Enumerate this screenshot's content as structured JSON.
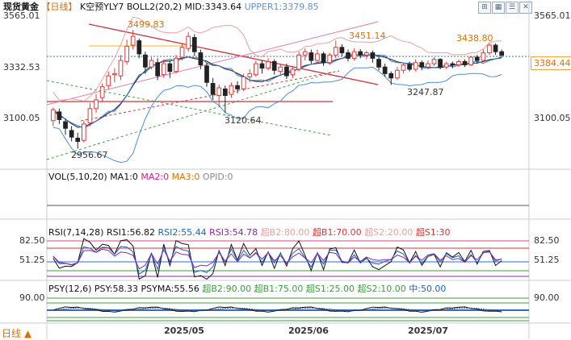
{
  "header": {
    "symbol": "现货黄金",
    "period": "【日线】",
    "k_label": "K空预YLY7",
    "boll_label": "BOLL2(20,2)",
    "mid_label": "MID:3343.64",
    "upper_label": "UPPER1:3379.85"
  },
  "toolbar": {
    "icons": [
      "grid-icon",
      "chart-icon",
      "list-icon",
      "toggle-icon",
      "close-icon"
    ]
  },
  "price_axis": {
    "labels": [
      "3565.01",
      "3332.53",
      "3100.05"
    ],
    "right_labels": [
      "3565.01",
      "3100.05"
    ],
    "current_price": "3384.44"
  },
  "annotations": {
    "high1": "3499.83",
    "high2": "3451.14",
    "high3": "3438.80",
    "low1": "3247.87",
    "low2": "3120.64",
    "low3": "2956.67"
  },
  "volume": {
    "label": "VOL(5,10,20)",
    "ma1": "MA1:0",
    "ma2": "MA2:0",
    "ma3": "MA3:0",
    "opid": "OPID:0"
  },
  "rsi": {
    "label": "RSI(7,14,28)",
    "rsi1": "RSI1:56.82",
    "rsi2": "RSI2:55.44",
    "rsi3": "RSI3:54.78",
    "b2": "超B2:80.00",
    "b1": "超B1:70.00",
    "s2": "超S2:20.00",
    "s1": "超S1:30",
    "axis_left": [
      "82.50",
      "51.25"
    ],
    "axis_right": [
      "82.50",
      "51.25"
    ]
  },
  "psy": {
    "label": "PSY(12,6)",
    "psy": "PSY:58.33",
    "psyma": "PSYMA:55.56",
    "b2": "超B2:90.00",
    "b1": "超B1:75.00",
    "s1": "超S1:25.00",
    "s2": "超S2:10.00",
    "mid": "中:50.00",
    "axis_left": "90.00",
    "axis_right": "90.00"
  },
  "dates": [
    "2025/05",
    "2025/06",
    "2025/07"
  ],
  "bottom": {
    "period": "日线",
    "arrow": "▲"
  },
  "colors": {
    "up": "#e53935",
    "down": "#222222",
    "boll_upper": "#e8a0a0",
    "boll_mid": "#333333",
    "boll_lower": "#4a90d9",
    "resist": "#d0403a",
    "support_green": "#3aa03a",
    "label_orange": "#e07000",
    "rsi1": "#111111",
    "rsi2": "#1565c0",
    "rsi3": "#8e24aa",
    "gold_line": "#f5c542",
    "blue_line": "#3b7dd8"
  },
  "chart_data": {
    "type": "candlestick",
    "title": "现货黄金【日线】",
    "ylim": [
      2900,
      3570
    ],
    "x_ticks": [
      "2025/05",
      "2025/06",
      "2025/07"
    ],
    "candles": [
      [
        3085,
        3135,
        3060,
        3145
      ],
      [
        3125,
        3090,
        3070,
        3140
      ],
      [
        3080,
        3050,
        3020,
        3095
      ],
      [
        3040,
        3010,
        2990,
        3060
      ],
      [
        3005,
        2990,
        2957,
        3030
      ],
      [
        2995,
        3070,
        2985,
        3085
      ],
      [
        3075,
        3140,
        3060,
        3165
      ],
      [
        3140,
        3180,
        3120,
        3205
      ],
      [
        3190,
        3240,
        3170,
        3255
      ],
      [
        3245,
        3290,
        3230,
        3310
      ],
      [
        3295,
        3300,
        3260,
        3325
      ],
      [
        3290,
        3360,
        3270,
        3385
      ],
      [
        3355,
        3425,
        3340,
        3455
      ],
      [
        3430,
        3470,
        3410,
        3500
      ],
      [
        3450,
        3390,
        3370,
        3460
      ],
      [
        3385,
        3330,
        3300,
        3400
      ],
      [
        3330,
        3360,
        3320,
        3375
      ],
      [
        3350,
        3290,
        3270,
        3370
      ],
      [
        3295,
        3345,
        3280,
        3365
      ],
      [
        3345,
        3310,
        3280,
        3360
      ],
      [
        3310,
        3370,
        3300,
        3385
      ],
      [
        3375,
        3420,
        3360,
        3440
      ],
      [
        3415,
        3470,
        3400,
        3490
      ],
      [
        3465,
        3400,
        3380,
        3480
      ],
      [
        3395,
        3340,
        3320,
        3410
      ],
      [
        3335,
        3260,
        3240,
        3350
      ],
      [
        3255,
        3205,
        3180,
        3280
      ],
      [
        3200,
        3235,
        3150,
        3250
      ],
      [
        3230,
        3200,
        3121,
        3245
      ],
      [
        3205,
        3245,
        3190,
        3260
      ],
      [
        3245,
        3230,
        3210,
        3265
      ],
      [
        3230,
        3285,
        3220,
        3300
      ],
      [
        3285,
        3300,
        3260,
        3320
      ],
      [
        3295,
        3345,
        3285,
        3360
      ],
      [
        3345,
        3325,
        3300,
        3360
      ],
      [
        3325,
        3355,
        3315,
        3370
      ],
      [
        3355,
        3315,
        3295,
        3365
      ],
      [
        3310,
        3330,
        3290,
        3345
      ],
      [
        3330,
        3290,
        3275,
        3345
      ],
      [
        3295,
        3320,
        3280,
        3335
      ],
      [
        3320,
        3385,
        3310,
        3400
      ],
      [
        3385,
        3400,
        3360,
        3415
      ],
      [
        3395,
        3360,
        3345,
        3410
      ],
      [
        3360,
        3390,
        3350,
        3410
      ],
      [
        3390,
        3350,
        3335,
        3400
      ],
      [
        3350,
        3385,
        3340,
        3395
      ],
      [
        3385,
        3420,
        3370,
        3451
      ],
      [
        3420,
        3395,
        3380,
        3435
      ],
      [
        3395,
        3370,
        3355,
        3410
      ],
      [
        3370,
        3400,
        3360,
        3415
      ],
      [
        3400,
        3385,
        3370,
        3412
      ],
      [
        3385,
        3395,
        3365,
        3405
      ],
      [
        3395,
        3370,
        3350,
        3405
      ],
      [
        3365,
        3330,
        3315,
        3380
      ],
      [
        3330,
        3300,
        3285,
        3345
      ],
      [
        3300,
        3280,
        3248,
        3310
      ],
      [
        3280,
        3315,
        3270,
        3330
      ],
      [
        3315,
        3340,
        3300,
        3350
      ],
      [
        3340,
        3320,
        3310,
        3355
      ],
      [
        3320,
        3350,
        3310,
        3365
      ],
      [
        3350,
        3330,
        3315,
        3360
      ],
      [
        3330,
        3345,
        3320,
        3360
      ],
      [
        3345,
        3365,
        3335,
        3375
      ],
      [
        3365,
        3330,
        3320,
        3370
      ],
      [
        3330,
        3345,
        3320,
        3355
      ],
      [
        3345,
        3340,
        3325,
        3355
      ],
      [
        3340,
        3355,
        3330,
        3365
      ],
      [
        3355,
        3340,
        3330,
        3365
      ],
      [
        3340,
        3375,
        3335,
        3380
      ],
      [
        3375,
        3360,
        3345,
        3385
      ],
      [
        3360,
        3395,
        3355,
        3410
      ],
      [
        3395,
        3430,
        3385,
        3439
      ],
      [
        3430,
        3400,
        3385,
        3438
      ],
      [
        3400,
        3384,
        3375,
        3410
      ]
    ],
    "boll": {
      "mid": 3343.64,
      "upper": 3379.85
    },
    "rsi": {
      "rsi1": 56.82,
      "rsi2": 55.44,
      "rsi3": 54.78
    },
    "psy": {
      "psy": 58.33,
      "psyma": 55.56
    }
  }
}
